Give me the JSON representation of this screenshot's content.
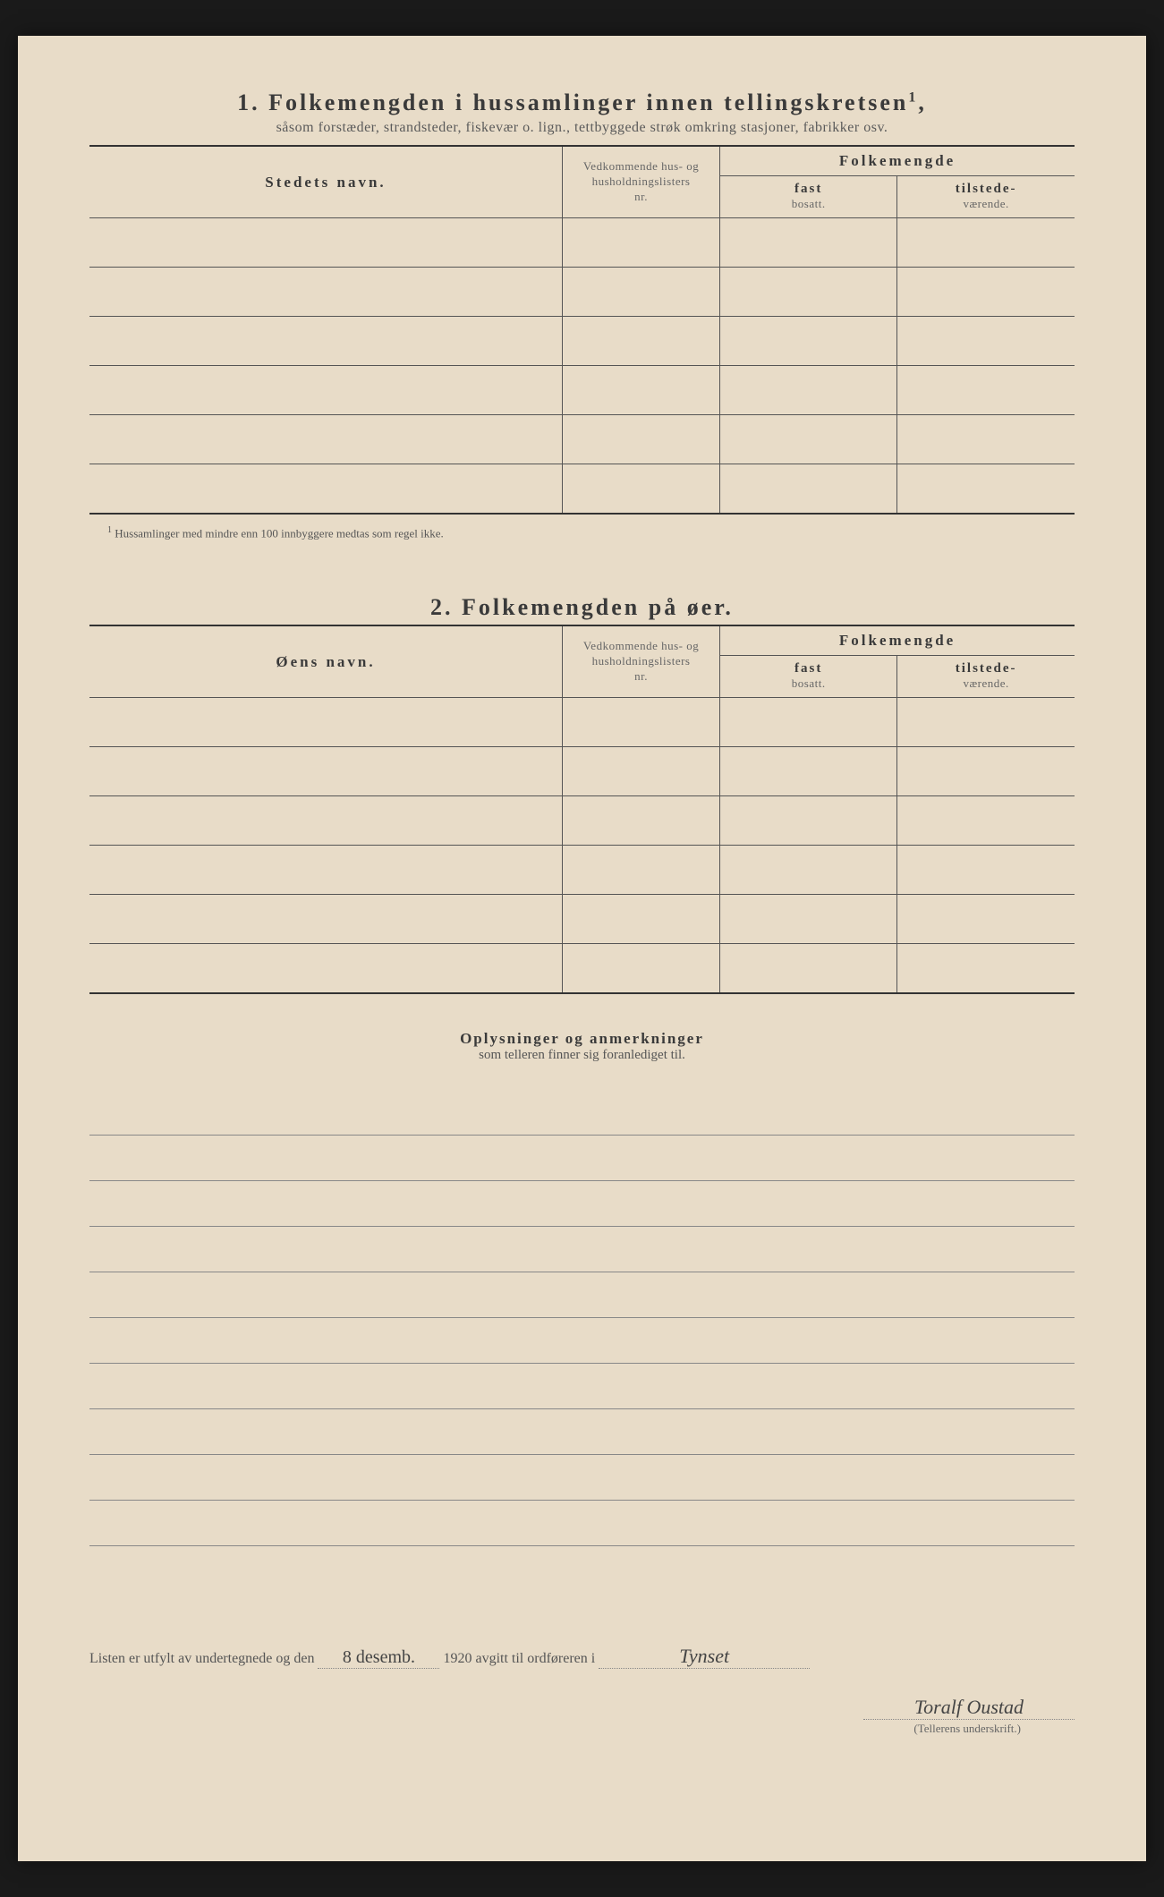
{
  "section1": {
    "number": "1.",
    "title": "Folkemengden i hussamlinger innen tellingskretsen",
    "sup": "1",
    "subtitle": "såsom forstæder, strandsteder, fiskevær o. lign., tettbyggede strøk omkring stasjoner, fabrikker osv.",
    "col_name": "Stedets navn.",
    "col_nr_line1": "Vedkommende hus- og",
    "col_nr_line2": "husholdningslisters",
    "col_nr_line3": "nr.",
    "col_pop": "Folkemengde",
    "col_fast_line1": "fast",
    "col_fast_line2": "bosatt.",
    "col_tilstede_line1": "tilstede-",
    "col_tilstede_line2": "værende.",
    "footnote_sup": "1",
    "footnote": "Hussamlinger med mindre enn 100 innbyggere medtas som regel ikke."
  },
  "section2": {
    "number": "2.",
    "title": "Folkemengden på øer.",
    "col_name": "Øens navn.",
    "col_nr_line1": "Vedkommende hus- og",
    "col_nr_line2": "husholdningslisters",
    "col_nr_line3": "nr.",
    "col_pop": "Folkemengde",
    "col_fast_line1": "fast",
    "col_fast_line2": "bosatt.",
    "col_tilstede_line1": "tilstede-",
    "col_tilstede_line2": "værende."
  },
  "remarks": {
    "title": "Oplysninger og anmerkninger",
    "subtitle": "som telleren finner sig foranlediget til."
  },
  "signature": {
    "prefix": "Listen er utfylt av undertegnede og den",
    "date_handwritten": "8 desemb.",
    "year": "1920",
    "middle": "avgitt til ordføreren i",
    "place_handwritten": "Tynset",
    "name_handwritten": "Toralf Oustad",
    "caption": "(Tellerens underskrift.)"
  }
}
